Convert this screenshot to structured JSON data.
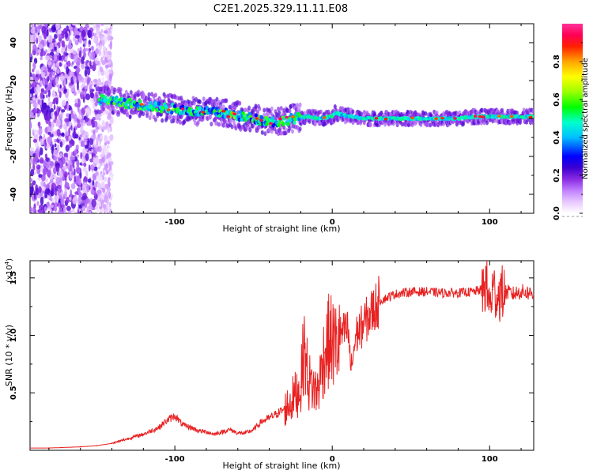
{
  "title": "C2E1.2025.329.11.11.E08",
  "chart_data": [
    {
      "type": "heatmap",
      "name": "spectrogram",
      "xlabel": "Height of straight line (km)",
      "ylabel": "Frequency (Hz)",
      "xlim": [
        -192,
        128
      ],
      "ylim": [
        -50,
        50
      ],
      "xticks": [
        -100,
        0,
        100
      ],
      "xtick_labels": [
        "-100",
        "0",
        "100"
      ],
      "yticks": [
        40,
        20,
        0,
        -20,
        -40
      ],
      "ytick_labels": [
        "40",
        "20",
        "0",
        "-20",
        "-40"
      ],
      "ridge": {
        "description": "dominant frequency track",
        "x": [
          -146,
          -130,
          -110,
          -90,
          -70,
          -50,
          -35,
          -25,
          -15,
          -8,
          0,
          2,
          6,
          12,
          20,
          40,
          60,
          80,
          90,
          100,
          110,
          128
        ],
        "y": [
          10,
          8,
          6,
          4,
          3,
          0,
          -2,
          0,
          1,
          0,
          1,
          3,
          2,
          1,
          0,
          0,
          0,
          0,
          1,
          1,
          1,
          1
        ]
      },
      "colorbar": {
        "label": "Normalized spectral amplitude",
        "range": [
          0,
          1
        ],
        "ticks": [
          0.0,
          0.2,
          0.4,
          0.6,
          0.8
        ],
        "tick_labels": [
          "0.0",
          "0.2",
          "0.4",
          "0.6",
          "0.8"
        ],
        "colors": [
          "#ffffff",
          "#cc66ff",
          "#6600cc",
          "#0000ff",
          "#00ffff",
          "#00ff00",
          "#ffff00",
          "#ff8800",
          "#ff0000",
          "#ff1493"
        ]
      }
    },
    {
      "type": "line",
      "name": "snr",
      "xlabel": "Height of straight line (km)",
      "ylabel": "SNR (10 * v/v)",
      "scale_label": "(x10",
      "scale_exponent": "4",
      "scale_suffix": ")",
      "xlim": [
        -192,
        128
      ],
      "ylim": [
        0,
        1.65
      ],
      "xticks": [
        -100,
        0,
        100
      ],
      "xtick_labels": [
        "-100",
        "0",
        "100"
      ],
      "yticks": [
        0.5,
        1.0,
        1.5
      ],
      "ytick_labels": [
        "0.5",
        "1.0",
        "1.5"
      ],
      "series": [
        {
          "name": "SNR",
          "color": "#e82020",
          "x": [
            -192,
            -180,
            -160,
            -150,
            -140,
            -130,
            -120,
            -110,
            -105,
            -100,
            -95,
            -90,
            -85,
            -80,
            -75,
            -70,
            -65,
            -60,
            -55,
            -50,
            -45,
            -40,
            -35,
            -30,
            -25,
            -20,
            -18,
            -15,
            -12,
            -10,
            -8,
            -5,
            -2,
            0,
            2,
            5,
            10,
            12,
            15,
            20,
            25,
            30,
            40,
            50,
            60,
            70,
            80,
            90,
            95,
            98,
            100,
            102,
            105,
            110,
            115,
            120,
            125,
            128
          ],
          "values": [
            0.02,
            0.02,
            0.03,
            0.04,
            0.06,
            0.1,
            0.14,
            0.2,
            0.26,
            0.3,
            0.22,
            0.2,
            0.17,
            0.16,
            0.14,
            0.16,
            0.18,
            0.15,
            0.15,
            0.18,
            0.25,
            0.28,
            0.32,
            0.36,
            0.45,
            0.55,
            0.9,
            0.6,
            0.55,
            0.5,
            0.6,
            0.85,
            0.95,
            0.95,
            0.9,
            1.0,
            1.05,
            0.7,
            1.0,
            1.1,
            1.2,
            1.3,
            1.36,
            1.38,
            1.38,
            1.37,
            1.37,
            1.38,
            1.4,
            1.45,
            1.25,
            1.4,
            1.35,
            1.38,
            1.36,
            1.38,
            1.37,
            1.36
          ]
        }
      ]
    }
  ]
}
